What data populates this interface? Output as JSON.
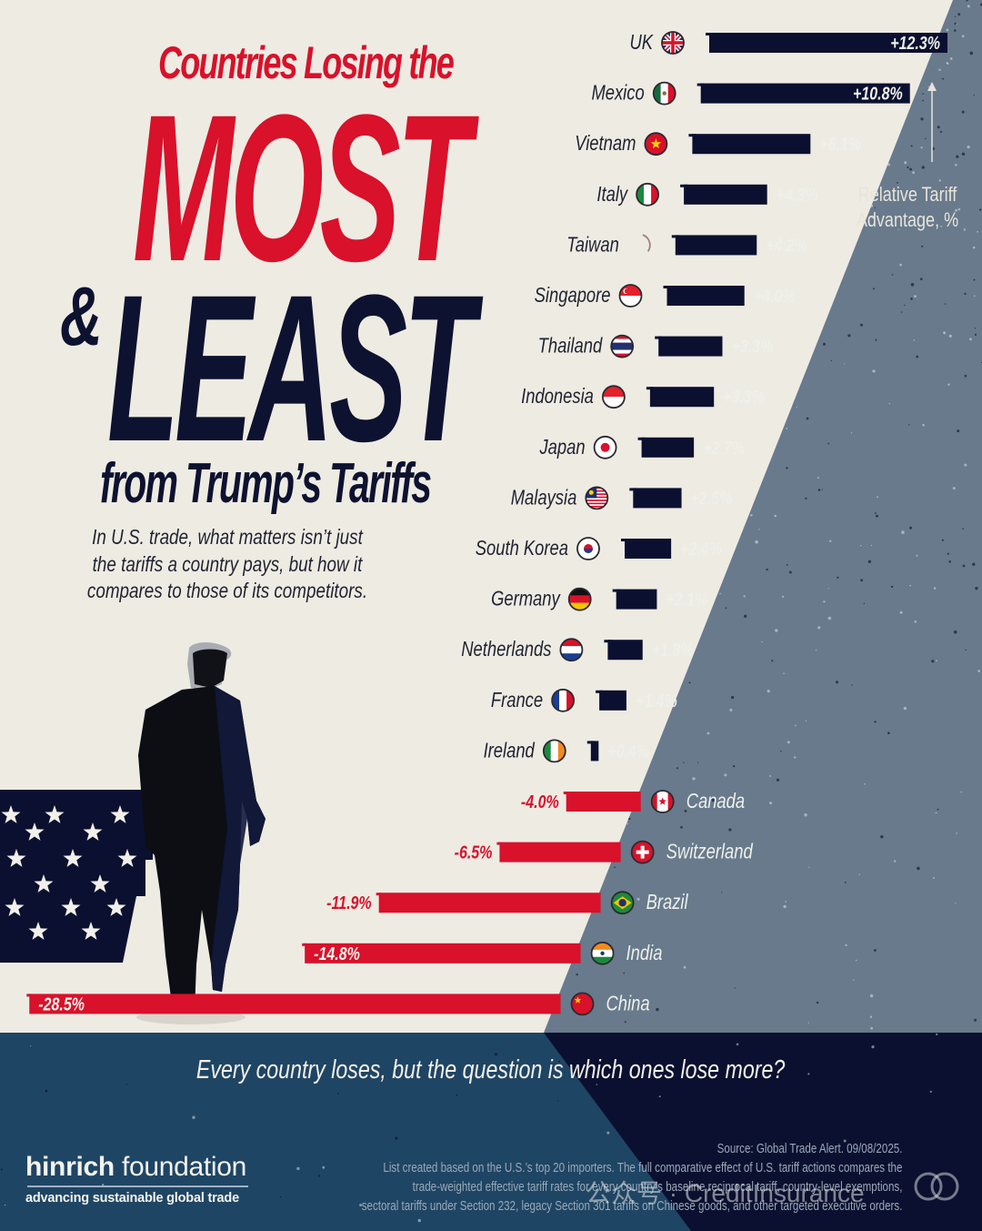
{
  "title": {
    "subtitle_top": "Countries Losing the",
    "word_most": "MOST",
    "ampersand": "&",
    "word_least": "LEAST",
    "subtitle_bottom": "from Trump’s Tariffs",
    "description_lines": [
      "In U.S. trade, what matters isn’t just",
      "the tariffs a country pays, but how it",
      "compares to those of its competitors."
    ]
  },
  "colors": {
    "background": "#eeebe3",
    "slate": "#687a8c",
    "positive_bar": "#0b1030",
    "negative_bar": "#d9112a",
    "navy_footer": "#0b1030",
    "mid_blue_footer": "#1f4564",
    "title_red": "#d9112a",
    "title_navy": "#0d1230"
  },
  "axis_label_lines": [
    "Relative Tariff",
    "Advantage, %"
  ],
  "chart_data": {
    "type": "bar",
    "orientation": "horizontal",
    "title": "Countries Losing the MOST & LEAST from Trump’s Tariffs",
    "xlabel": "Relative Tariff Advantage, %",
    "ylabel": "",
    "categories": [
      "UK",
      "Mexico",
      "Vietnam",
      "Italy",
      "Taiwan",
      "Singapore",
      "Thailand",
      "Indonesia",
      "Japan",
      "Malaysia",
      "South Korea",
      "Germany",
      "Netherlands",
      "France",
      "Ireland",
      "Canada",
      "Switzerland",
      "Brazil",
      "India",
      "China"
    ],
    "values": [
      12.3,
      10.8,
      6.1,
      4.3,
      4.2,
      4.0,
      3.3,
      3.3,
      2.7,
      2.5,
      2.4,
      2.1,
      1.8,
      1.4,
      0.4,
      -4.0,
      -6.5,
      -11.9,
      -14.8,
      -28.5
    ],
    "labels": [
      "+12.3%",
      "+10.8%",
      "+6.1%",
      "+4.3%",
      "+4.2%",
      "+4.0%",
      "+3.3%",
      "+3.3%",
      "+2.7%",
      "+2.5%",
      "+2.4%",
      "+2.1%",
      "+1.8%",
      "+1.4%",
      "+0.4%",
      "-4.0%",
      "-6.5%",
      "-11.9%",
      "-14.8%",
      "-28.5%"
    ],
    "flags": [
      "uk-flag",
      "mexico-flag",
      "vietnam-flag",
      "italy-flag",
      "taiwan-flag",
      "singapore-flag",
      "thailand-flag",
      "indonesia-flag",
      "japan-flag",
      "malaysia-flag",
      "south-korea-flag",
      "germany-flag",
      "netherlands-flag",
      "france-flag",
      "ireland-flag",
      "canada-flag",
      "switzerland-flag",
      "brazil-flag",
      "india-flag",
      "china-flag"
    ],
    "xlim": [
      -28.5,
      12.3
    ],
    "grid": false,
    "legend": "none",
    "series_colors": {
      "positive": "#0b1030",
      "negative": "#d9112a"
    }
  },
  "footer": {
    "question": "Every country loses, but the question is which ones lose more?",
    "logo_bold": "hinrich",
    "logo_light": " foundation",
    "logo_tagline": "advancing sustainable global trade",
    "source_lines": [
      "Source: Global Trade Alert. 09/08/2025.",
      "List created based on the U.S.’s top 20 importers. The full comparative effect of U.S. tariff actions compares the",
      "trade-weighted effective tariff rates for every country’s baseline reciprocal tariff, country-level exemptions,",
      "sectoral tariffs under Section 232, legacy Section 301 tariffs on Chinese goods, and other targeted executive orders."
    ],
    "watermark": "公众号 · CreditInsurance"
  }
}
